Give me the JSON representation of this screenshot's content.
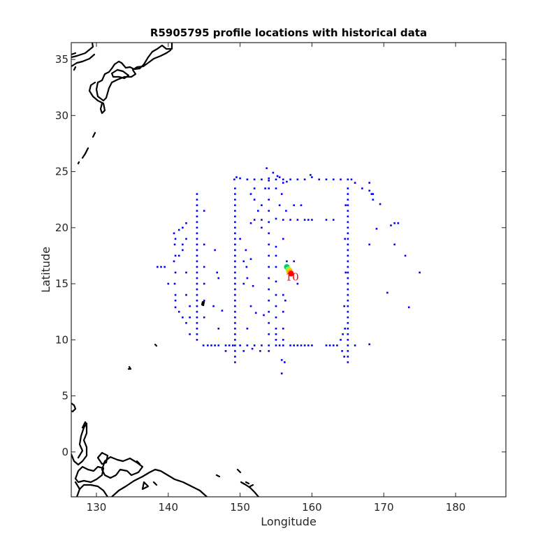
{
  "figure": {
    "title": "R5905795 profile locations with historical data"
  },
  "chart_data": {
    "type": "scatter",
    "title": "R5905795 profile locations with historical data",
    "xlabel": "Longitude",
    "ylabel": "Latitude",
    "xlim": [
      126.5,
      187
    ],
    "ylim": [
      -4,
      36.5
    ],
    "xticks": [
      130,
      140,
      150,
      160,
      170,
      180
    ],
    "yticks": [
      0,
      5,
      10,
      15,
      20,
      25,
      30,
      35
    ],
    "grid": false,
    "box": true,
    "colors": {
      "historical": "#0000ff",
      "coastline": "#000000",
      "label": "#ff0000"
    },
    "series": [
      {
        "role": "historical",
        "points": [
          [
            149.2,
            24.3
          ],
          [
            149.5,
            24.5
          ],
          [
            150,
            24.4
          ],
          [
            151,
            24.3
          ],
          [
            152,
            24.3
          ],
          [
            153,
            24.3
          ],
          [
            154,
            24.4
          ],
          [
            154,
            24.2
          ],
          [
            155,
            24.3
          ],
          [
            156,
            24.3
          ],
          [
            157,
            24.3
          ],
          [
            158,
            24.3
          ],
          [
            159,
            24.3
          ],
          [
            160,
            24.5
          ],
          [
            161,
            24.3
          ],
          [
            162,
            24.3
          ],
          [
            163,
            24.3
          ],
          [
            164,
            24.3
          ],
          [
            165,
            24.3
          ],
          [
            165.5,
            24.3
          ],
          [
            166,
            24
          ],
          [
            167,
            23.5
          ],
          [
            168,
            23.3
          ],
          [
            168.5,
            23
          ],
          [
            153.7,
            25.3
          ],
          [
            154.6,
            24.9
          ],
          [
            155.2,
            24.6
          ],
          [
            159.8,
            24.7
          ],
          [
            149.3,
            23.5
          ],
          [
            149.3,
            23
          ],
          [
            149.3,
            22.5
          ],
          [
            149.3,
            22
          ],
          [
            149.3,
            21.5
          ],
          [
            149.3,
            21
          ],
          [
            149.3,
            20.5
          ],
          [
            149.3,
            20
          ],
          [
            149.3,
            19.5
          ],
          [
            149.3,
            19
          ],
          [
            149.3,
            18.5
          ],
          [
            149.3,
            18
          ],
          [
            149.3,
            17.5
          ],
          [
            149.3,
            17
          ],
          [
            149.3,
            16.5
          ],
          [
            149.3,
            16
          ],
          [
            149.3,
            15.5
          ],
          [
            149.3,
            15
          ],
          [
            149.3,
            14.5
          ],
          [
            149.3,
            14
          ],
          [
            149.3,
            13.5
          ],
          [
            149.3,
            13
          ],
          [
            149.3,
            12.5
          ],
          [
            149.3,
            12
          ],
          [
            149.3,
            11.5
          ],
          [
            149.3,
            11
          ],
          [
            149.3,
            10.5
          ],
          [
            149.3,
            10
          ],
          [
            149.3,
            9.5
          ],
          [
            149.3,
            9
          ],
          [
            149.3,
            8.5
          ],
          [
            149.3,
            8
          ],
          [
            154,
            23.5
          ],
          [
            154,
            22.5
          ],
          [
            154,
            21.5
          ],
          [
            154,
            20.5
          ],
          [
            154,
            19.5
          ],
          [
            154,
            18.5
          ],
          [
            154,
            17.5
          ],
          [
            154,
            16.5
          ],
          [
            154,
            15.5
          ],
          [
            154,
            14.5
          ],
          [
            154,
            13.5
          ],
          [
            154,
            12.5
          ],
          [
            154,
            11.5
          ],
          [
            154,
            10.5
          ],
          [
            154,
            9.5
          ],
          [
            154,
            9
          ],
          [
            165,
            23.5
          ],
          [
            165,
            23
          ],
          [
            165,
            22.5
          ],
          [
            165,
            22
          ],
          [
            165,
            21.5
          ],
          [
            165,
            21
          ],
          [
            165,
            20.5
          ],
          [
            165,
            20
          ],
          [
            165,
            19.5
          ],
          [
            165,
            19
          ],
          [
            165,
            18.5
          ],
          [
            165,
            18
          ],
          [
            165,
            17.5
          ],
          [
            165,
            17
          ],
          [
            165,
            16.5
          ],
          [
            165,
            16
          ],
          [
            165,
            15.5
          ],
          [
            165,
            15
          ],
          [
            165,
            14.5
          ],
          [
            165,
            14
          ],
          [
            165,
            13.5
          ],
          [
            165,
            13
          ],
          [
            165,
            12.5
          ],
          [
            165,
            12
          ],
          [
            165,
            11.5
          ],
          [
            165,
            11
          ],
          [
            165,
            10.5
          ],
          [
            165,
            10
          ],
          [
            165,
            9.5
          ],
          [
            165,
            9
          ],
          [
            165,
            8.5
          ],
          [
            165,
            8
          ],
          [
            164.7,
            22
          ],
          [
            164.6,
            19
          ],
          [
            164.7,
            16
          ],
          [
            164.5,
            13
          ],
          [
            164.6,
            11
          ],
          [
            164.3,
            10.5
          ],
          [
            164,
            10
          ],
          [
            164.2,
            9
          ],
          [
            164.5,
            8.5
          ],
          [
            144.9,
            9.5
          ],
          [
            145.5,
            9.5
          ],
          [
            146,
            9.5
          ],
          [
            146.5,
            9.5
          ],
          [
            147,
            9.5
          ],
          [
            148,
            9.5
          ],
          [
            148.5,
            9.5
          ],
          [
            149,
            9.5
          ],
          [
            150,
            9.5
          ],
          [
            151,
            9.5
          ],
          [
            152,
            9.5
          ],
          [
            153,
            9.5
          ],
          [
            155,
            9.5
          ],
          [
            155.5,
            9.5
          ],
          [
            156,
            9.5
          ],
          [
            157,
            9.5
          ],
          [
            157.5,
            9.5
          ],
          [
            158,
            9.5
          ],
          [
            158.5,
            9.5
          ],
          [
            159,
            9.5
          ],
          [
            159.5,
            9.5
          ],
          [
            160,
            9.5
          ],
          [
            162,
            9.5
          ],
          [
            162.5,
            9.5
          ],
          [
            163,
            9.5
          ],
          [
            163.5,
            9.5
          ],
          [
            166,
            9.5
          ],
          [
            168,
            9.6
          ],
          [
            155,
            20.8
          ],
          [
            156,
            20.7
          ],
          [
            157,
            20.7
          ],
          [
            158,
            20.7
          ],
          [
            159,
            20.7
          ],
          [
            159.5,
            20.7
          ],
          [
            160,
            20.7
          ],
          [
            162,
            20.7
          ],
          [
            163,
            20.7
          ],
          [
            152,
            20.7
          ],
          [
            153,
            20.7
          ],
          [
            151.5,
            20.4
          ],
          [
            144,
            23
          ],
          [
            144,
            22.5
          ],
          [
            144,
            22
          ],
          [
            144,
            21.5
          ],
          [
            144,
            21
          ],
          [
            144,
            20.5
          ],
          [
            144,
            20
          ],
          [
            144,
            19.5
          ],
          [
            144,
            19
          ],
          [
            144,
            18.5
          ],
          [
            144,
            18
          ],
          [
            144,
            17.5
          ],
          [
            144,
            17
          ],
          [
            144,
            16.5
          ],
          [
            144,
            16
          ],
          [
            144,
            15.5
          ],
          [
            144,
            15
          ],
          [
            144,
            14.5
          ],
          [
            144,
            14
          ],
          [
            144,
            13.5
          ],
          [
            144,
            13
          ],
          [
            144,
            12.5
          ],
          [
            144,
            12
          ],
          [
            144,
            11.5
          ],
          [
            144,
            11
          ],
          [
            144,
            10.5
          ],
          [
            144,
            10
          ],
          [
            145,
            21.5
          ],
          [
            145,
            18.5
          ],
          [
            145,
            16.5
          ],
          [
            145,
            15
          ],
          [
            145,
            13.5
          ],
          [
            145,
            12
          ],
          [
            140.8,
            19.5
          ],
          [
            141,
            19
          ],
          [
            140.9,
            18.5
          ],
          [
            141,
            17.5
          ],
          [
            140.8,
            17
          ],
          [
            141,
            16
          ],
          [
            140.9,
            15
          ],
          [
            141,
            14
          ],
          [
            141,
            13.5
          ],
          [
            141,
            12.9
          ],
          [
            141.5,
            12.5
          ],
          [
            142,
            12
          ],
          [
            141.5,
            19.8
          ],
          [
            142,
            20
          ],
          [
            142.5,
            19
          ],
          [
            142,
            18
          ],
          [
            142.5,
            16
          ],
          [
            142.5,
            14
          ],
          [
            143,
            13
          ],
          [
            143,
            12
          ],
          [
            142.5,
            11.5
          ],
          [
            143,
            10.5
          ],
          [
            138.5,
            16.5
          ],
          [
            139,
            16.5
          ],
          [
            139.5,
            16.5
          ],
          [
            140,
            15
          ],
          [
            141.5,
            17.5
          ],
          [
            142,
            18.5
          ],
          [
            142.5,
            20.4
          ],
          [
            146.5,
            18
          ],
          [
            146.8,
            16
          ],
          [
            146.3,
            13
          ],
          [
            147,
            11
          ],
          [
            147.5,
            12.6
          ],
          [
            148,
            9
          ],
          [
            147,
            15.5
          ],
          [
            150,
            19
          ],
          [
            150.5,
            17
          ],
          [
            151,
            15.5
          ],
          [
            151.8,
            14.8
          ],
          [
            150.5,
            15
          ],
          [
            151.5,
            17.2
          ],
          [
            150.8,
            18
          ],
          [
            150.9,
            16.5
          ],
          [
            151.5,
            13
          ],
          [
            151.7,
            9.2
          ],
          [
            150.5,
            9
          ],
          [
            152.2,
            12.4
          ],
          [
            153,
            20
          ],
          [
            152.5,
            21.5
          ],
          [
            152,
            22.5
          ],
          [
            151.5,
            23
          ],
          [
            153,
            22
          ],
          [
            153.5,
            23.5
          ],
          [
            152,
            23.5
          ],
          [
            152.8,
            9
          ],
          [
            153.3,
            12.2
          ],
          [
            151,
            11
          ],
          [
            155,
            18.3
          ],
          [
            155,
            17.5
          ],
          [
            155,
            16.5
          ],
          [
            155,
            15.2
          ],
          [
            155,
            14
          ],
          [
            155,
            13
          ],
          [
            155,
            12
          ],
          [
            155,
            11
          ],
          [
            155,
            10.5
          ],
          [
            155,
            10
          ],
          [
            156,
            10
          ],
          [
            156,
            11
          ],
          [
            156,
            12.5
          ],
          [
            156,
            14
          ],
          [
            156,
            19
          ],
          [
            155.8,
            8.2
          ],
          [
            155.8,
            7
          ],
          [
            156.2,
            8
          ],
          [
            156.3,
            13.5
          ],
          [
            156.5,
            17
          ],
          [
            157.5,
            17
          ],
          [
            158,
            15
          ],
          [
            156.4,
            21.5
          ],
          [
            155.5,
            22
          ],
          [
            155.8,
            23
          ],
          [
            156,
            24
          ],
          [
            158.5,
            22
          ],
          [
            157.5,
            22
          ],
          [
            156.5,
            24.1
          ],
          [
            155,
            23.5
          ],
          [
            155.5,
            24.5
          ],
          [
            168,
            18.5
          ],
          [
            169,
            19.9
          ],
          [
            171,
            20.2
          ],
          [
            171.5,
            20.4
          ],
          [
            172,
            20.4
          ],
          [
            171.5,
            18.5
          ],
          [
            173,
            17.5
          ],
          [
            175,
            16
          ],
          [
            170.5,
            14.2
          ],
          [
            173.5,
            12.9
          ],
          [
            168.5,
            22.5
          ],
          [
            169.5,
            22.1
          ],
          [
            168,
            24
          ],
          [
            168.3,
            23
          ]
        ]
      },
      {
        "role": "float",
        "points": [
          [
            156.5,
            16.5
          ],
          [
            156.7,
            16.3
          ],
          [
            156.8,
            16.1
          ],
          [
            156.9,
            16.2
          ],
          [
            157,
            16
          ],
          [
            157.1,
            15.9
          ]
        ],
        "colors": [
          "#00cc66",
          "#66ff66",
          "#cccc00",
          "#ffcc00",
          "#ff8800",
          "#ff0000"
        ],
        "last_label": "10"
      }
    ]
  }
}
